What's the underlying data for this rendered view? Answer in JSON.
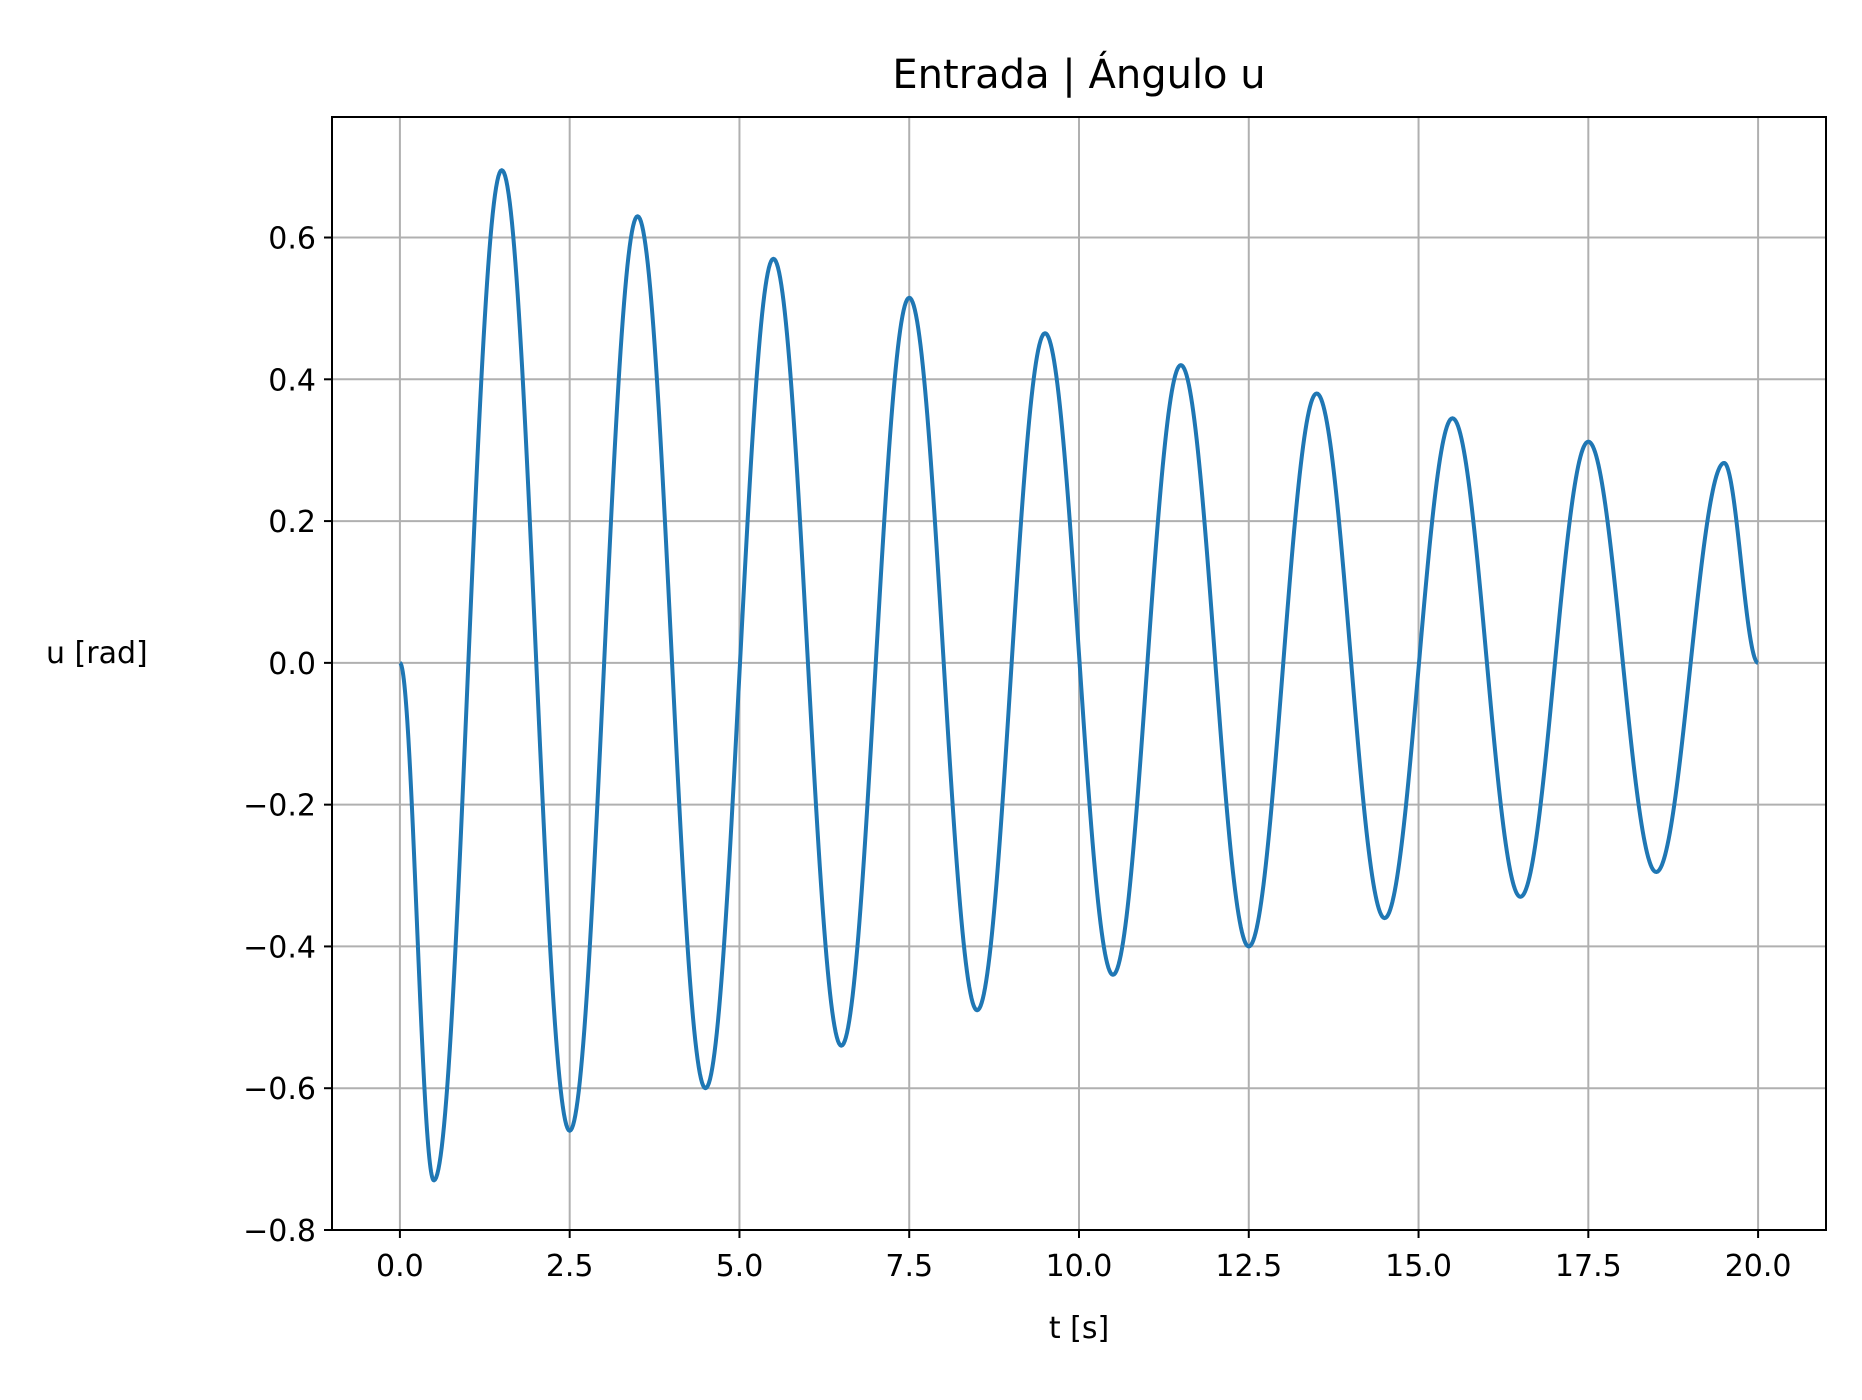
{
  "chart_data": {
    "type": "line",
    "title": "Entrada | Ángulo u",
    "xlabel": "t [s]",
    "ylabel": "u [rad]",
    "xlim": [
      -1.0,
      21.0
    ],
    "ylim": [
      -0.8,
      0.77
    ],
    "x_ticks": [
      0.0,
      2.5,
      5.0,
      7.5,
      10.0,
      12.5,
      15.0,
      17.5,
      20.0
    ],
    "x_tick_labels": [
      "0.0",
      "2.5",
      "5.0",
      "7.5",
      "10.0",
      "12.5",
      "15.0",
      "17.5",
      "20.0"
    ],
    "y_ticks": [
      -0.8,
      -0.6,
      -0.4,
      -0.2,
      0.0,
      0.2,
      0.4,
      0.6
    ],
    "y_tick_labels": [
      "−0.8",
      "−0.6",
      "−0.4",
      "−0.2",
      "0.0",
      "0.2",
      "0.4",
      "0.6"
    ],
    "grid": true,
    "color": "#1f77b4",
    "series": [
      {
        "x": [
          0.0,
          0.5,
          1.5,
          2.5,
          3.5,
          4.5,
          5.5,
          6.5,
          7.5,
          8.5,
          9.5,
          10.5,
          11.5,
          12.5,
          13.5,
          14.5,
          15.5,
          16.5,
          17.5,
          18.5,
          19.5,
          20.0
        ],
        "y": [
          0.0,
          -0.73,
          0.695,
          -0.66,
          0.63,
          -0.6,
          0.57,
          -0.54,
          0.515,
          -0.49,
          0.465,
          -0.44,
          0.42,
          -0.4,
          0.38,
          -0.36,
          0.345,
          -0.33,
          0.312,
          -0.295,
          0.282,
          0.0
        ]
      }
    ]
  }
}
